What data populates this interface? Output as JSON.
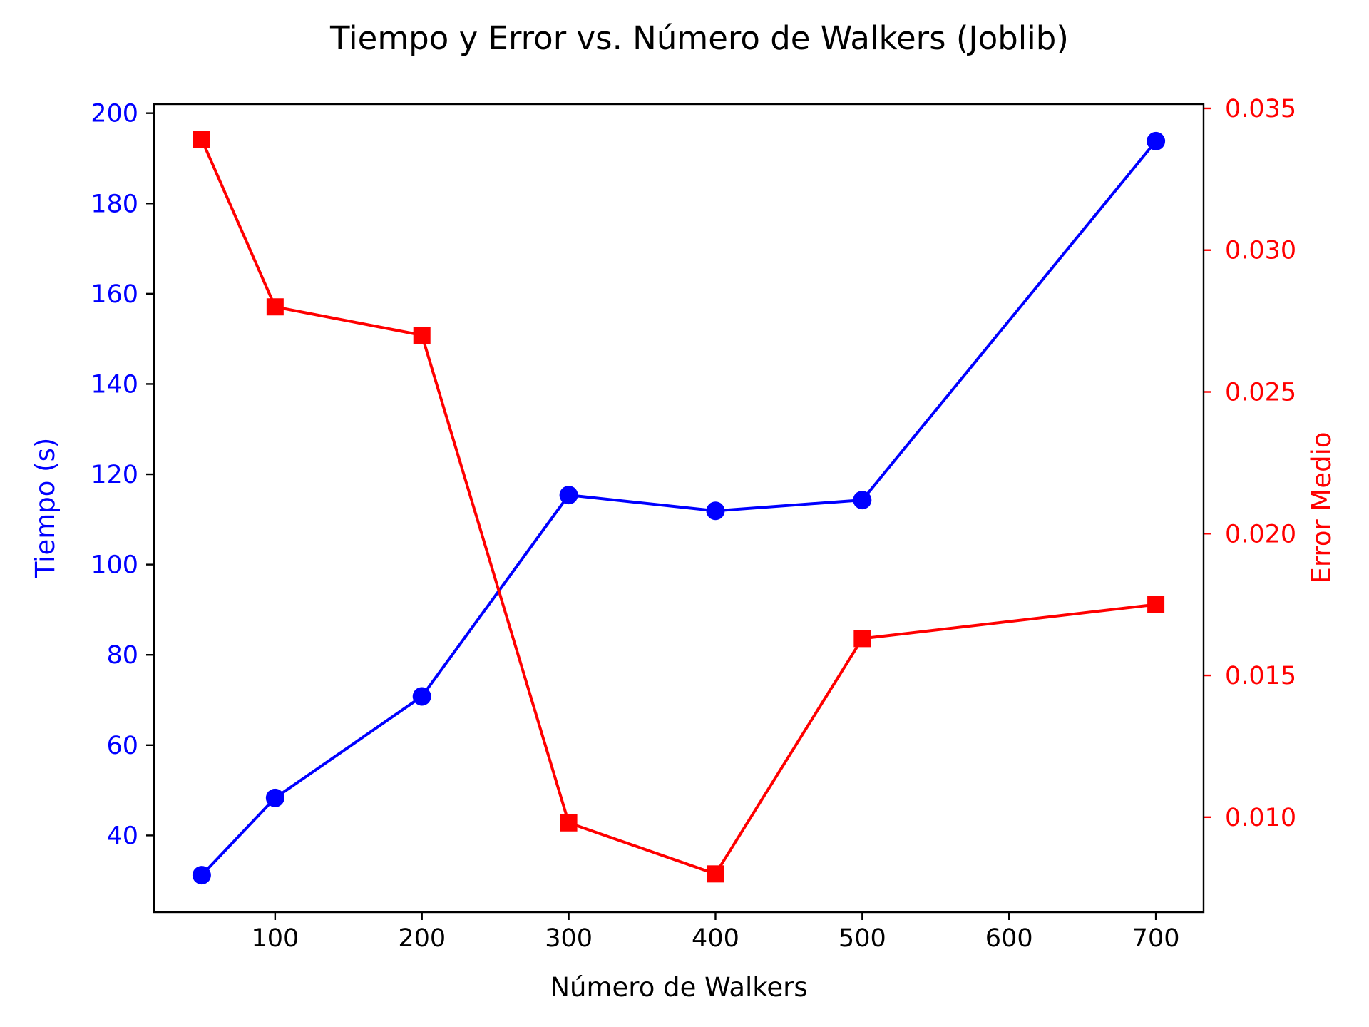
{
  "chart_data": {
    "type": "line",
    "title": "Tiempo y Error vs. Número de Walkers (Joblib)",
    "xlabel": "Número de Walkers",
    "ylabel_left": "Tiempo (s)",
    "ylabel_right": "Error Medio",
    "x": [
      50,
      100,
      200,
      300,
      400,
      500,
      700
    ],
    "xlim": [
      17.5,
      732.5
    ],
    "ylim_left": [
      23,
      202
    ],
    "ylim_right": [
      0.00665,
      0.03515
    ],
    "x_ticks": [
      100,
      200,
      300,
      400,
      500,
      600,
      700
    ],
    "x_tick_labels": [
      "100",
      "200",
      "300",
      "400",
      "500",
      "600",
      "700"
    ],
    "y_left_ticks": [
      40,
      60,
      80,
      100,
      120,
      140,
      160,
      180,
      200
    ],
    "y_left_tick_labels": [
      "40",
      "60",
      "80",
      "100",
      "120",
      "140",
      "160",
      "180",
      "200"
    ],
    "y_right_ticks": [
      0.01,
      0.015,
      0.02,
      0.025,
      0.03,
      0.035
    ],
    "y_right_tick_labels": [
      "0.010",
      "0.015",
      "0.020",
      "0.025",
      "0.030",
      "0.035"
    ],
    "grid": false,
    "series": [
      {
        "axis": "left",
        "color": "#0000ff",
        "marker": "circle",
        "values": [
          31.2,
          48.3,
          70.8,
          115.4,
          111.9,
          114.3,
          193.8
        ]
      },
      {
        "axis": "right",
        "color": "#ff0000",
        "marker": "square",
        "values": [
          0.0339,
          0.028,
          0.027,
          0.0098,
          0.008,
          0.0163,
          0.0175
        ]
      }
    ],
    "colors": {
      "left_axis": "#0000ff",
      "right_axis": "#ff0000",
      "frame": "#000000"
    }
  }
}
